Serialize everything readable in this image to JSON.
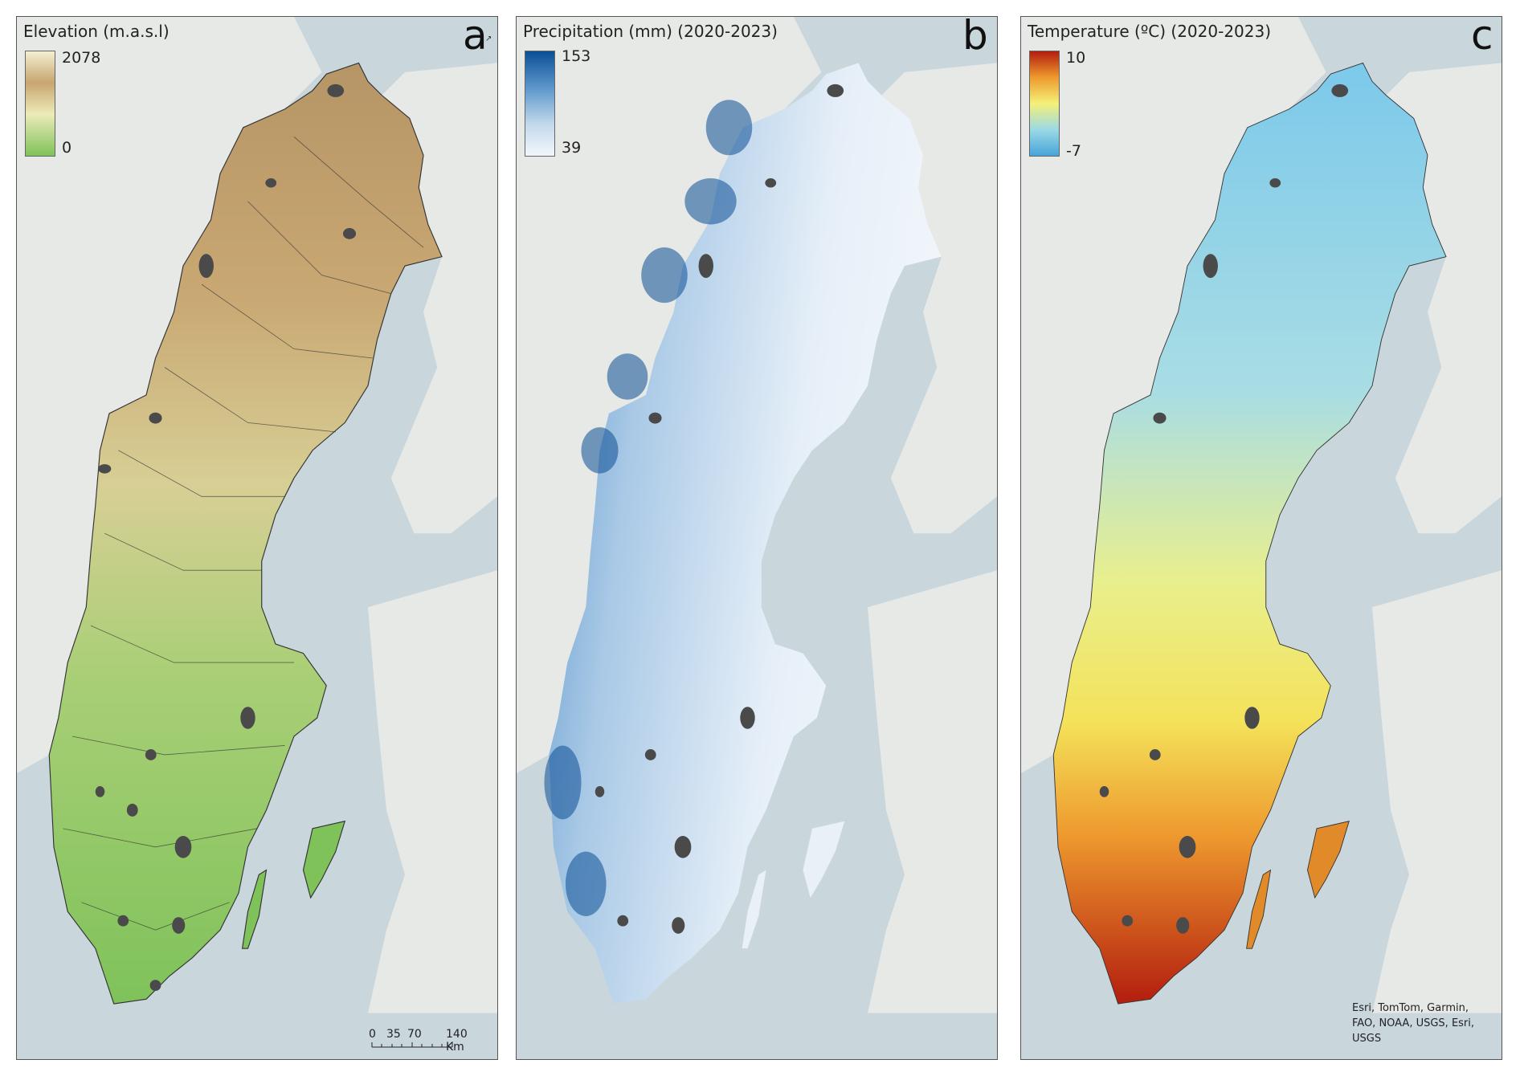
{
  "panels": [
    {
      "letter": "a",
      "legend_title": "Elevation (m.a.s.l)",
      "max_label": "2078",
      "min_label": "0",
      "ramp_colors": [
        "#f3efd2",
        "#c8a570",
        "#ecebb9",
        "#7fc25a"
      ]
    },
    {
      "letter": "b",
      "legend_title": "Precipitation (mm) (2020-2023)",
      "max_label": "153",
      "min_label": "39",
      "ramp_colors": [
        "#0c4f96",
        "#5c97cb",
        "#c3d9ec",
        "#f2f6fb"
      ]
    },
    {
      "letter": "c",
      "legend_title": "Temperature (ºC) (2020-2023)",
      "max_label": "10",
      "min_label": "-7",
      "ramp_colors": [
        "#b31d0e",
        "#ee9a2e",
        "#f4f178",
        "#9bd9e6",
        "#46a4d8"
      ]
    }
  ],
  "scalebar": {
    "labels": [
      "0",
      "35",
      "70",
      "140 Km"
    ]
  },
  "credit": {
    "lines": [
      "Esri, TomTom, Garmin,",
      "FAO, NOAA, USGS, Esri,",
      "USGS"
    ]
  },
  "colors": {
    "sea": "#c9d6dc",
    "land_background": "#e7e9e6",
    "cities": "#4a4a4a"
  }
}
